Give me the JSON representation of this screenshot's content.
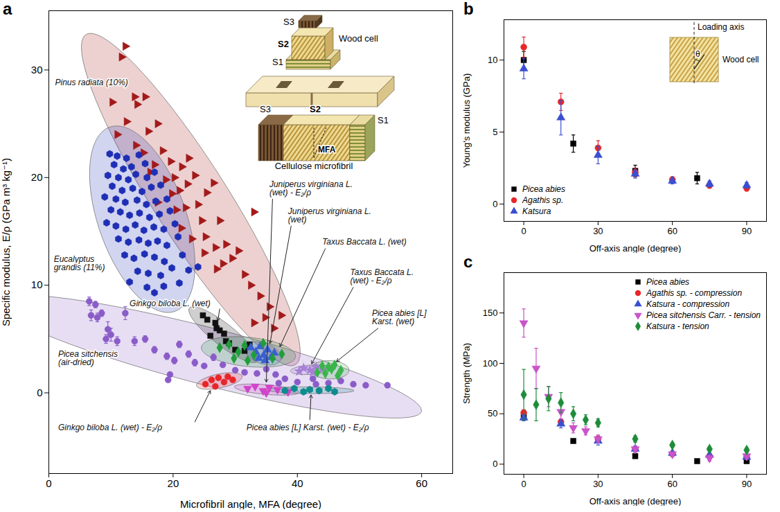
{
  "chart_data": [
    {
      "panel": "a",
      "type": "scatter",
      "x_label": "Microfibril angle, MFA (degree)",
      "y_label": "Specific modulus, E/ρ (GPa m³ kg⁻¹)",
      "xlim": [
        0,
        65
      ],
      "xticks": [
        0,
        20,
        40,
        60
      ],
      "ylim": [
        -7.5,
        35.5
      ],
      "yticks": [
        0,
        10,
        20,
        30
      ],
      "series": [
        {
          "name": "Pinus radiata (10%)",
          "color": "#a31a1a",
          "marker": "triangle-right",
          "x": [
            12.3,
            11.7,
            10.2,
            13.8,
            14.2,
            15.5,
            12.5,
            11,
            16,
            17.5,
            14,
            15.2,
            17,
            18.3,
            19.6,
            16.3,
            18.8,
            20.2,
            21.4,
            22.5,
            19.8,
            21,
            22.3,
            23.5,
            17.5,
            20.5,
            22,
            24,
            25.4,
            26.5,
            24.6,
            27.5,
            21.3,
            23,
            25.2,
            26.8,
            28.5,
            29.5,
            31.5,
            33,
            32.5,
            34,
            35.5,
            34.8,
            36.2,
            37.4,
            28,
            30.5,
            25,
            27,
            33
          ],
          "values": [
            32.2,
            31.2,
            27,
            27.5,
            26.8,
            27.5,
            25.2,
            24,
            24.3,
            25,
            23,
            22.3,
            21.2,
            22.5,
            21.5,
            20.5,
            19.8,
            20,
            21,
            21.8,
            18.5,
            18.8,
            19.4,
            20.2,
            17.7,
            17,
            17.2,
            17.5,
            18.6,
            19.5,
            16,
            16,
            15.3,
            14.3,
            14.5,
            13.5,
            13.8,
            12.5,
            11,
            16.8,
            10,
            9,
            8,
            7,
            6,
            7.2,
            12,
            13.2,
            13,
            11.5,
            6.5
          ]
        },
        {
          "name": "Eucalyptus grandis (11%)",
          "color": "#1f2fb5",
          "marker": "pentagon",
          "x": [
            9.8,
            11,
            12.5,
            14.5,
            10.5,
            12,
            13.3,
            15.5,
            9.5,
            11.2,
            12.8,
            14,
            15.8,
            17,
            10.2,
            11.8,
            13.5,
            15,
            16.5,
            18,
            9,
            10.8,
            12.3,
            14.2,
            15.7,
            17.2,
            19,
            10,
            11.5,
            13,
            14.6,
            16.2,
            17.8,
            19.5,
            9.3,
            10.8,
            12.4,
            13.9,
            15.3,
            16.9,
            18.5,
            20.3,
            11.2,
            12.8,
            14.5,
            16,
            17.5,
            19,
            20.8,
            12.2,
            13.7,
            15.4,
            17,
            18.6,
            21.5,
            14.3,
            16,
            18,
            19.8,
            22.5,
            13,
            15.8,
            18.5,
            21,
            24,
            17
          ],
          "values": [
            22.2,
            22,
            21.8,
            22.1,
            21.2,
            20.8,
            21,
            21.3,
            20.2,
            20,
            19.8,
            20.3,
            20,
            20.5,
            19.2,
            18.8,
            19,
            18.7,
            19.1,
            19.3,
            18.2,
            18,
            17.7,
            17.9,
            17.5,
            17.8,
            18,
            17,
            16.8,
            16.5,
            16.7,
            16.3,
            16.6,
            16.9,
            15.8,
            15.5,
            15.2,
            15.6,
            15.1,
            15.4,
            15.2,
            15.7,
            14.3,
            14,
            14.2,
            13.9,
            14.1,
            13.7,
            14.5,
            12.8,
            12.5,
            12.9,
            12.6,
            12.2,
            12.8,
            11.3,
            11.1,
            10.9,
            11.6,
            11.4,
            10.3,
            9.8,
            9.9,
            10.2,
            11.7,
            9.3
          ]
        },
        {
          "name": "Picea sitchensis (air-dried)",
          "color": "#8a5cc8",
          "marker": "circle",
          "x": [
            6.5,
            7.5,
            6.8,
            7.8,
            8.5,
            9.5,
            10,
            9.2,
            12.3,
            11,
            13.8,
            15.5,
            17,
            19,
            21,
            20.2,
            22.5,
            19.5,
            19.2,
            23.5,
            25,
            26.5,
            28,
            30,
            31.5,
            33.5,
            35,
            36.5,
            38,
            40,
            42.5,
            45,
            47,
            49,
            51,
            54.5,
            37,
            43
          ],
          "values": [
            8.5,
            8.2,
            7.2,
            7,
            7.4,
            5.9,
            5.4,
            5,
            7.4,
            4.8,
            4.8,
            5,
            4,
            3.4,
            4.5,
            3,
            3.6,
            1.7,
            1.2,
            2.8,
            2.5,
            3.3,
            2.6,
            2.1,
            1.9,
            1.8,
            2.2,
            1.7,
            1.3,
            1,
            1.3,
            0.9,
            1.1,
            0.8,
            0.7,
            0.7,
            0.9,
            0.8
          ],
          "errors": [
            0.4,
            0.3,
            0.5,
            0.4,
            0.3,
            0.7,
            0.6,
            0.4,
            0.6,
            0.4,
            0.4,
            0.3,
            0.3,
            0.3,
            0.3,
            0.3,
            0.3,
            0.2,
            0.2,
            0.3,
            0.2,
            0.3,
            0.2,
            0.2,
            0.2,
            0.2,
            0.2,
            0.2,
            0.2,
            0.2,
            0.2,
            0.2,
            0.2,
            0.2,
            0.2,
            0.2,
            0.2,
            0.2
          ]
        },
        {
          "name": "Ginkgo biloba L. (wet)",
          "color": "#111111",
          "marker": "square",
          "x": [
            24.8,
            25.5,
            26.8,
            27.5,
            26,
            28.2,
            29,
            30,
            31.5,
            32.3,
            28.5,
            27
          ],
          "values": [
            7.2,
            6.8,
            6.5,
            5.8,
            5.3,
            5.5,
            4.6,
            4,
            3.9,
            4.5,
            4.8,
            6
          ]
        },
        {
          "name": "Ginkgo biloba L. (wet) - E₂/ρ",
          "color": "#e8262a",
          "marker": "circle",
          "x": [
            25.2,
            26.2,
            27.3,
            28.2,
            28.8,
            29.6,
            26.8
          ],
          "values": [
            0.8,
            1.2,
            1.4,
            1,
            1.5,
            1.2,
            0.6
          ]
        },
        {
          "name": "Juniperus virginiana L. (wet)",
          "color": "#3a5fd0",
          "marker": "triangle-up",
          "x": [
            32.5,
            33.3,
            34,
            34.6,
            35.2,
            35.8,
            36.3,
            34.8,
            33.8
          ],
          "values": [
            4.2,
            3.8,
            4.3,
            3.5,
            4,
            3.3,
            3.7,
            3,
            3.2
          ]
        },
        {
          "name": "Juniperus virginiana L. (wet) - E₂/ρ",
          "color": "#d145c8",
          "marker": "triangle-down",
          "x": [
            32,
            33.2,
            34.5,
            35.5,
            36.8,
            38.5,
            35
          ],
          "values": [
            0.4,
            0.6,
            0.2,
            0.5,
            0.3,
            0.1,
            0
          ]
        },
        {
          "name": "Taxus Baccata L. (wet)",
          "color": "#1f9e3a",
          "marker": "diamond",
          "x": [
            27.5,
            29,
            30.5,
            31.5,
            33,
            34.5,
            36,
            37.5,
            29.8,
            32
          ],
          "values": [
            4.2,
            4.5,
            3.8,
            4.4,
            3.5,
            4.6,
            3.2,
            3.6,
            3.2,
            3
          ]
        },
        {
          "name": "Taxus Baccata L. (wet) - E₂/ρ",
          "color": "#a77fd6",
          "marker": "star",
          "x": [
            40.3,
            41,
            42,
            42.5,
            43,
            44
          ],
          "values": [
            2,
            2.3,
            2.1,
            1.9,
            2.4,
            2.2
          ]
        },
        {
          "name": "Picea abies [L] Karst. (wet)",
          "color": "#39b54a",
          "marker": "diamond",
          "x": [
            43.2,
            44.5,
            45,
            45.5,
            46.5,
            47,
            44,
            46
          ],
          "values": [
            1.9,
            1.8,
            2.4,
            2.2,
            1.6,
            2.1,
            2.5,
            2.6
          ]
        },
        {
          "name": "Picea abies [L] Karst. (wet) - E₂/ρ",
          "color": "#0f8b8d",
          "marker": "hexagon",
          "x": [
            38,
            39.5,
            41,
            42,
            43.5,
            45,
            46
          ],
          "values": [
            0.2,
            0.4,
            0.1,
            0.3,
            0.2,
            0.4,
            0.1
          ]
        }
      ],
      "inset": {
        "wood_cell": {
          "layers": [
            "S3",
            "S2",
            "S1"
          ],
          "label": "Wood cell"
        },
        "microfibril": {
          "layers": [
            "S3",
            "S2",
            "S1"
          ],
          "angle_label": "MFA",
          "label": "Cellulose microfibril"
        }
      }
    },
    {
      "panel": "b",
      "type": "scatter",
      "x_label": "Off-axis angle (degree)",
      "y_label": "Young's modulus (GPa)",
      "xlim": [
        -8,
        98
      ],
      "xticks": [
        0,
        30,
        60,
        90
      ],
      "ylim": [
        -1.2,
        12.8
      ],
      "yticks": [
        0,
        5,
        10
      ],
      "legend": "lower left",
      "series": [
        {
          "name": "Picea abies",
          "color": "#000000",
          "marker": "square",
          "x": [
            0,
            20,
            45,
            70
          ],
          "values": [
            10,
            4.2,
            2.3,
            1.8
          ],
          "errors": [
            0.6,
            0.6,
            0.4,
            0.4
          ]
        },
        {
          "name": "Agathis sp.",
          "color": "#e8262a",
          "marker": "circle",
          "x": [
            0,
            15,
            30,
            45,
            60,
            75,
            90
          ],
          "values": [
            10.9,
            7.1,
            3.9,
            2.2,
            1.7,
            1.3,
            1.1
          ],
          "errors": [
            0.7,
            0.6,
            0.5,
            0.3,
            0.2,
            0.2,
            0.2
          ]
        },
        {
          "name": "Katsura",
          "color": "#3a4fd0",
          "marker": "triangle-up",
          "x": [
            0,
            15,
            30,
            45,
            60,
            75,
            90
          ],
          "values": [
            9.4,
            6,
            3.4,
            2.1,
            1.6,
            1.4,
            1.3
          ],
          "errors": [
            0.7,
            1.2,
            0.6,
            0.3,
            0.2,
            0.2,
            0.2
          ]
        }
      ],
      "inset": {
        "axis_label": "Loading axis",
        "cell_label": "Wood cell",
        "angle_label": "θ"
      }
    },
    {
      "panel": "c",
      "type": "scatter",
      "x_label": "Off-axis angle (degree)",
      "y_label": "Strength (MPa)",
      "xlim": [
        -8,
        98
      ],
      "xticks": [
        0,
        30,
        60,
        90
      ],
      "ylim": [
        -10,
        190
      ],
      "yticks": [
        0,
        50,
        100,
        150
      ],
      "legend": "upper right",
      "series": [
        {
          "name": "Picea abies",
          "color": "#000000",
          "marker": "square",
          "x": [
            0,
            20,
            45,
            70,
            90
          ],
          "values": [
            47,
            23,
            8,
            3,
            3
          ],
          "errors": [
            3,
            2,
            2,
            1,
            1
          ]
        },
        {
          "name": "Agathis sp. - compression",
          "color": "#e8262a",
          "marker": "circle",
          "x": [
            0,
            15,
            30,
            45,
            60,
            75,
            90
          ],
          "values": [
            51,
            42,
            25,
            15,
            10,
            8,
            7
          ],
          "errors": [
            3,
            3,
            3,
            2,
            2,
            2,
            1
          ]
        },
        {
          "name": "Katsura - compression",
          "color": "#3a4fd0",
          "marker": "triangle-up",
          "x": [
            0,
            15,
            30,
            45,
            60,
            75,
            90
          ],
          "values": [
            46,
            40,
            23,
            15,
            11,
            9,
            7
          ],
          "errors": [
            3,
            4,
            4,
            3,
            2,
            2,
            2
          ]
        },
        {
          "name": "Picea sitchensis Carr. - tension",
          "color": "#c953c9",
          "marker": "triangle-down",
          "x": [
            0,
            5,
            10,
            15,
            20,
            25,
            30,
            45,
            60,
            75,
            90
          ],
          "values": [
            140,
            95,
            67,
            52,
            36,
            33,
            25,
            15,
            10,
            6,
            8
          ],
          "errors": [
            14,
            20,
            10,
            7,
            5,
            4,
            4,
            3,
            2,
            3,
            2
          ]
        },
        {
          "name": "Katsura - tension",
          "color": "#1e8c3a",
          "marker": "diamond",
          "x": [
            0,
            5,
            10,
            15,
            20,
            25,
            30,
            45,
            60,
            75,
            90
          ],
          "values": [
            69,
            59,
            65,
            61,
            50,
            44,
            41,
            25,
            19,
            15,
            14
          ],
          "errors": [
            25,
            16,
            12,
            10,
            7,
            5,
            4,
            3,
            2,
            2,
            2
          ]
        }
      ]
    }
  ]
}
